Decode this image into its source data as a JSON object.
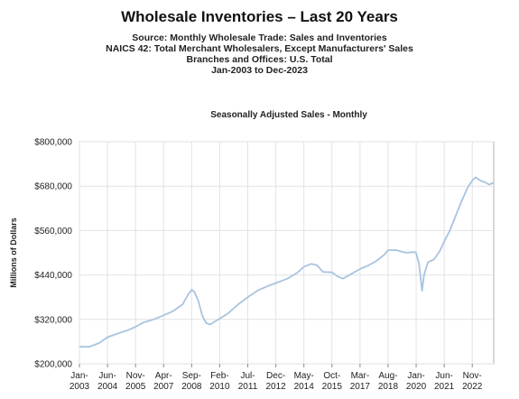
{
  "title": "Wholesale Inventories – Last 20 Years",
  "subtitles": [
    "Source: Monthly Wholesale Trade: Sales and Inventories",
    "NAICS 42: Total Merchant Wholesalers, Except Manufacturers' Sales",
    "Branches and Offices: U.S. Total",
    "Jan-2003 to Dec-2023"
  ],
  "chart_data": {
    "type": "line",
    "title": "Seasonally Adjusted Sales - Monthly",
    "xlabel": "",
    "ylabel": "Millions of Dollars",
    "ylim": [
      200000,
      800000
    ],
    "yticks": [
      200000,
      320000,
      440000,
      560000,
      680000,
      800000
    ],
    "ytick_labels": [
      "$200,000",
      "$320,000",
      "$440,000",
      "$560,000",
      "$680,000",
      "$800,000"
    ],
    "xticks": [
      {
        "top": "Jan-",
        "bottom": "2003",
        "t": 2003.0
      },
      {
        "top": "Jun-",
        "bottom": "2004",
        "t": 2004.417
      },
      {
        "top": "Nov-",
        "bottom": "2005",
        "t": 2005.833
      },
      {
        "top": "Apr-",
        "bottom": "2007",
        "t": 2007.25
      },
      {
        "top": "Sep-",
        "bottom": "2008",
        "t": 2008.667
      },
      {
        "top": "Feb-",
        "bottom": "2010",
        "t": 2010.083
      },
      {
        "top": "Jul-",
        "bottom": "2011",
        "t": 2011.5
      },
      {
        "top": "Dec-",
        "bottom": "2012",
        "t": 2012.917
      },
      {
        "top": "May-",
        "bottom": "2014",
        "t": 2014.333
      },
      {
        "top": "Oct-",
        "bottom": "2015",
        "t": 2015.75
      },
      {
        "top": "Mar-",
        "bottom": "2017",
        "t": 2017.167
      },
      {
        "top": "Aug-",
        "bottom": "2018",
        "t": 2018.583
      },
      {
        "top": "Jan-",
        "bottom": "2020",
        "t": 2020.0
      },
      {
        "top": "Jun-",
        "bottom": "2021",
        "t": 2021.417
      },
      {
        "top": "Nov-",
        "bottom": "2022",
        "t": 2022.833
      }
    ],
    "xlim": [
      2003.0,
      2023.917
    ],
    "line_color": "#a8c4e0",
    "grid": true,
    "series": [
      {
        "points": [
          [
            2003.0,
            246000
          ],
          [
            2003.5,
            246000
          ],
          [
            2004.0,
            256000
          ],
          [
            2004.417,
            272000
          ],
          [
            2005.0,
            283000
          ],
          [
            2005.5,
            292000
          ],
          [
            2005.833,
            300000
          ],
          [
            2006.25,
            312000
          ],
          [
            2006.75,
            320000
          ],
          [
            2007.25,
            331000
          ],
          [
            2007.75,
            343000
          ],
          [
            2008.2,
            360000
          ],
          [
            2008.5,
            388000
          ],
          [
            2008.667,
            400000
          ],
          [
            2008.8,
            395000
          ],
          [
            2009.0,
            370000
          ],
          [
            2009.2,
            330000
          ],
          [
            2009.4,
            310000
          ],
          [
            2009.6,
            306000
          ],
          [
            2009.9,
            316000
          ],
          [
            2010.083,
            322000
          ],
          [
            2010.5,
            336000
          ],
          [
            2011.0,
            360000
          ],
          [
            2011.5,
            380000
          ],
          [
            2012.0,
            398000
          ],
          [
            2012.5,
            410000
          ],
          [
            2012.917,
            418000
          ],
          [
            2013.5,
            430000
          ],
          [
            2014.0,
            446000
          ],
          [
            2014.333,
            462000
          ],
          [
            2014.7,
            470000
          ],
          [
            2015.0,
            466000
          ],
          [
            2015.3,
            448000
          ],
          [
            2015.75,
            447000
          ],
          [
            2016.0,
            437000
          ],
          [
            2016.3,
            430000
          ],
          [
            2016.7,
            442000
          ],
          [
            2017.167,
            456000
          ],
          [
            2017.6,
            466000
          ],
          [
            2018.0,
            478000
          ],
          [
            2018.4,
            495000
          ],
          [
            2018.583,
            507000
          ],
          [
            2019.0,
            507000
          ],
          [
            2019.5,
            500000
          ],
          [
            2019.9,
            502000
          ],
          [
            2020.0,
            500000
          ],
          [
            2020.15,
            470000
          ],
          [
            2020.3,
            397000
          ],
          [
            2020.4,
            440000
          ],
          [
            2020.6,
            475000
          ],
          [
            2020.9,
            482000
          ],
          [
            2021.2,
            505000
          ],
          [
            2021.417,
            530000
          ],
          [
            2021.7,
            560000
          ],
          [
            2022.0,
            600000
          ],
          [
            2022.3,
            640000
          ],
          [
            2022.6,
            676000
          ],
          [
            2022.833,
            695000
          ],
          [
            2023.0,
            704000
          ],
          [
            2023.25,
            695000
          ],
          [
            2023.5,
            690000
          ],
          [
            2023.7,
            684000
          ],
          [
            2023.917,
            690000
          ]
        ]
      }
    ]
  }
}
